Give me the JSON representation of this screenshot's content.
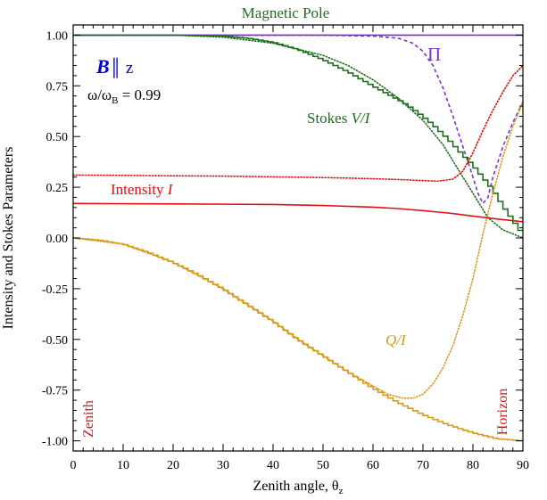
{
  "chart_data": {
    "type": "line",
    "title": "Magnetic Pole",
    "xlabel_main": "Zenith angle, θ",
    "xlabel_sub": "z",
    "ylabel": "Intensity and Stokes Parameters",
    "xlim": [
      0,
      90
    ],
    "ylim": [
      -1.05,
      1.05
    ],
    "x_ticks": [
      0,
      10,
      20,
      30,
      40,
      50,
      60,
      70,
      80,
      90
    ],
    "x_tick_labels": [
      "0",
      "10",
      "20",
      "30",
      "40",
      "50",
      "60",
      "70",
      "80",
      "90"
    ],
    "y_ticks": [
      -1.0,
      -0.75,
      -0.5,
      -0.25,
      0.0,
      0.25,
      0.5,
      0.75,
      1.0
    ],
    "y_tick_labels": [
      "-1.00",
      "-0.75",
      "-0.50",
      "-0.25",
      "0.00",
      "0.25",
      "0.50",
      "0.75",
      "1.00"
    ],
    "grid": false,
    "annotations": {
      "field_bold": "B",
      "field_rest": "║ z",
      "freq_main": "ω/ω",
      "freq_sub": "B",
      "freq_value": " = 0.99",
      "pi_label": "Π",
      "stokes_v_prefix": "Stokes ",
      "stokes_v_italic": "V/I",
      "intensity_prefix": "Intensity ",
      "intensity_italic": "I",
      "q_label": "Q/I",
      "zenith": "Zenith",
      "horizon": "Horizon"
    },
    "series": [
      {
        "key": "pi_solid",
        "color": "#7b2fd6",
        "style": "solid",
        "step": false,
        "x": [
          0,
          90
        ],
        "y": [
          1.0,
          1.0
        ]
      },
      {
        "key": "pi_dashed",
        "color": "#7b2fd6",
        "style": "dashed",
        "step": false,
        "x": [
          0,
          50,
          60,
          65,
          68,
          70,
          72,
          74,
          76,
          78,
          80,
          81,
          82,
          83,
          84,
          86,
          88,
          90
        ],
        "y": [
          1.0,
          1.0,
          0.995,
          0.985,
          0.96,
          0.92,
          0.85,
          0.74,
          0.6,
          0.45,
          0.3,
          0.22,
          0.17,
          0.2,
          0.3,
          0.45,
          0.57,
          0.67
        ]
      },
      {
        "key": "v_step",
        "color": "#1e6e1e",
        "style": "solid",
        "step": true,
        "x": [
          0,
          20,
          30,
          35,
          40,
          45,
          50,
          55,
          60,
          63,
          66,
          69,
          72,
          75,
          78,
          80,
          82,
          84,
          86,
          88,
          90
        ],
        "y": [
          1.0,
          1.0,
          0.995,
          0.985,
          0.965,
          0.93,
          0.88,
          0.82,
          0.75,
          0.71,
          0.67,
          0.62,
          0.56,
          0.49,
          0.41,
          0.36,
          0.3,
          0.24,
          0.16,
          0.09,
          0.02
        ]
      },
      {
        "key": "v_dotted",
        "color": "#1e6e1e",
        "style": "dotted",
        "step": false,
        "x": [
          0,
          20,
          30,
          40,
          50,
          55,
          60,
          65,
          70,
          74,
          77,
          80,
          83,
          86,
          88,
          90
        ],
        "y": [
          1.0,
          1.0,
          0.99,
          0.96,
          0.9,
          0.85,
          0.78,
          0.69,
          0.58,
          0.46,
          0.34,
          0.22,
          0.1,
          0.04,
          0.02,
          0.0
        ]
      },
      {
        "key": "q_step",
        "color": "#d89a1c",
        "style": "solid",
        "step": true,
        "x": [
          0,
          5,
          10,
          15,
          20,
          25,
          30,
          35,
          40,
          45,
          50,
          55,
          60,
          65,
          70,
          75,
          80,
          85,
          90
        ],
        "y": [
          0.0,
          -0.01,
          -0.03,
          -0.07,
          -0.12,
          -0.18,
          -0.25,
          -0.33,
          -0.41,
          -0.5,
          -0.58,
          -0.66,
          -0.74,
          -0.81,
          -0.87,
          -0.92,
          -0.96,
          -0.99,
          -1.0
        ]
      },
      {
        "key": "q_dotted",
        "color": "#d89a1c",
        "style": "dotted",
        "step": false,
        "x": [
          0,
          10,
          20,
          30,
          40,
          45,
          50,
          55,
          60,
          63,
          66,
          68,
          70,
          72,
          74,
          76,
          78,
          80,
          82,
          84,
          86,
          88,
          90
        ],
        "y": [
          0.0,
          -0.03,
          -0.12,
          -0.25,
          -0.41,
          -0.5,
          -0.58,
          -0.66,
          -0.73,
          -0.77,
          -0.79,
          -0.79,
          -0.77,
          -0.72,
          -0.64,
          -0.53,
          -0.38,
          -0.2,
          0.02,
          0.22,
          0.4,
          0.55,
          0.67
        ]
      },
      {
        "key": "intensity_solid",
        "color": "#e01010",
        "style": "solid",
        "step": false,
        "x": [
          0,
          20,
          40,
          50,
          60,
          65,
          70,
          75,
          80,
          85,
          90
        ],
        "y": [
          0.17,
          0.168,
          0.165,
          0.16,
          0.152,
          0.145,
          0.135,
          0.123,
          0.108,
          0.093,
          0.08
        ]
      },
      {
        "key": "intensity_dotted",
        "color": "#e01010",
        "style": "dotted",
        "step": false,
        "x": [
          0,
          30,
          50,
          60,
          65,
          70,
          73,
          76,
          78,
          80,
          82,
          84,
          86,
          88,
          90
        ],
        "y": [
          0.31,
          0.305,
          0.298,
          0.292,
          0.288,
          0.283,
          0.28,
          0.29,
          0.33,
          0.42,
          0.53,
          0.63,
          0.72,
          0.8,
          0.85
        ]
      }
    ]
  }
}
